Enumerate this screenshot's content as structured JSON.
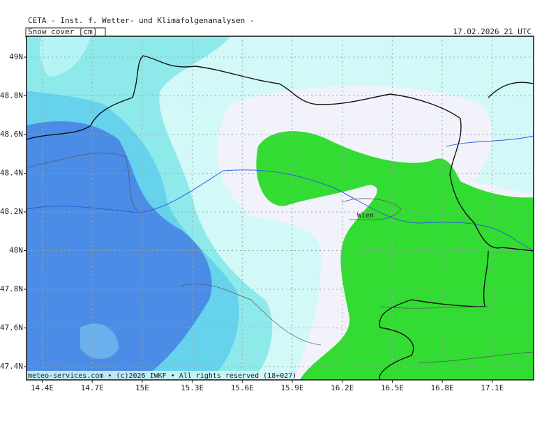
{
  "header": {
    "title": "CETA - Inst. f. Wetter- und Klimafolgenanalysen -",
    "field": "Snow cover [cm]",
    "datetime": "17.02.2026 21 UTC"
  },
  "map": {
    "x_labels": [
      "14.4E",
      "14.7E",
      "15E",
      "15.3E",
      "15.6E",
      "15.9E",
      "16.2E",
      "16.5E",
      "16.8E",
      "17.1E"
    ],
    "y_labels": [
      "49N",
      "48.8N",
      "48.6N",
      "48.4N",
      "48.2N",
      "48N",
      "47.8N",
      "47.6N",
      "47.4N"
    ],
    "city": "Wien",
    "footer": "meteo-services.com • (c)2026 IWKF • All rights reserved (18+027)"
  }
}
